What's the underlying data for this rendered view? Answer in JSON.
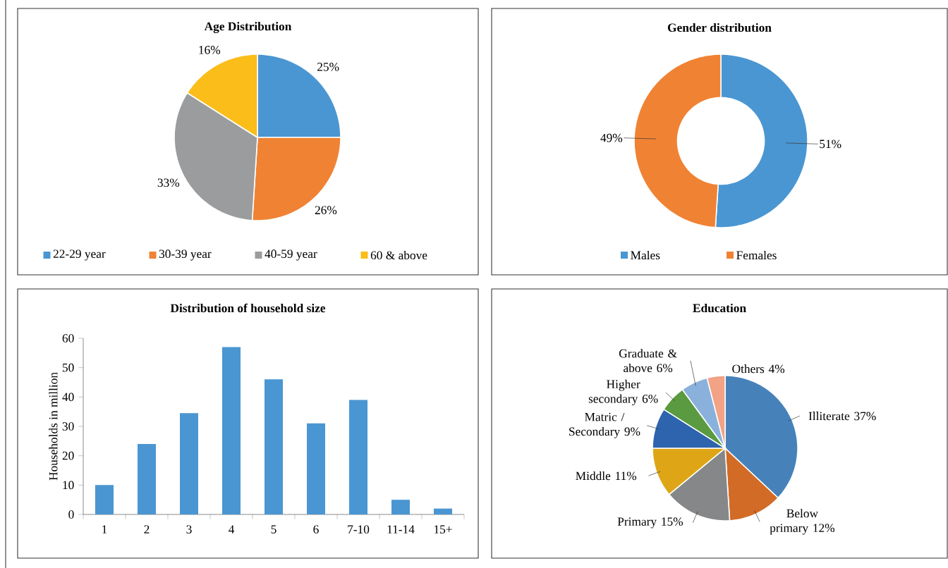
{
  "chart_data": [
    {
      "type": "pie",
      "title": "Age Distribution",
      "categories": [
        "22-29 year",
        "30-39 year",
        "40-59 year",
        "60 & above"
      ],
      "values": [
        25,
        26,
        33,
        16
      ],
      "value_labels": [
        "25%",
        "26%",
        "33%",
        "16%"
      ],
      "colors": [
        "#4a96d2",
        "#f08233",
        "#9b9c9e",
        "#fbbd19"
      ],
      "legend": "bottom"
    },
    {
      "type": "donut",
      "title": "Gender distribution",
      "categories": [
        "Males",
        "Females"
      ],
      "values": [
        51,
        49
      ],
      "value_labels": [
        "51%",
        "49%"
      ],
      "colors": [
        "#4a96d2",
        "#f08233"
      ],
      "legend": "bottom"
    },
    {
      "type": "bar",
      "title": "Distribution of household size",
      "categories": [
        "1",
        "2",
        "3",
        "4",
        "5",
        "6",
        "7-10",
        "11-14",
        "15+"
      ],
      "values": [
        10,
        24,
        34.5,
        57,
        46,
        31,
        39,
        5,
        2
      ],
      "color": "#4a96d2",
      "ylabel": "Households in million",
      "ylim": [
        0,
        60
      ],
      "yticks": [
        0,
        10,
        20,
        30,
        40,
        50,
        60
      ]
    },
    {
      "type": "pie",
      "title": "Education",
      "categories": [
        "Illiterate",
        "Below primary",
        "Primary",
        "Middle",
        "Matric / Secondary",
        "Higher secondary",
        "Graduate & above",
        "Others"
      ],
      "values": [
        37,
        12,
        15,
        11,
        9,
        6,
        6,
        4
      ],
      "value_labels": [
        "37%",
        "12%",
        "15%",
        "11%",
        "9%",
        "6%",
        "6%",
        "4%"
      ],
      "colors": [
        "#4682b9",
        "#d26b25",
        "#858789",
        "#dea616",
        "#2e63ae",
        "#5a9a40",
        "#8ab1dc",
        "#f2a285"
      ]
    }
  ]
}
